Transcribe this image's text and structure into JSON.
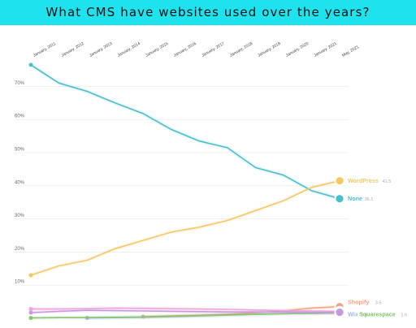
{
  "title": "What CMS have websites used over the years?",
  "colors": {
    "banner": "#1ee3ee",
    "none": "#4bbfd0",
    "wordpress": "#f7c765",
    "shopify": "#f6a27e",
    "wix": "#9db8f0",
    "squarespace": "#86c46e",
    "joomla": "#f3a3d9",
    "drupal": "#c79ae0"
  },
  "chart_data": {
    "type": "line",
    "x": [
      "January, 2011",
      "January, 2012",
      "January, 2013",
      "January, 2014",
      "January, 2015",
      "January, 2016",
      "January, 2017",
      "January, 2018",
      "January, 2019",
      "January, 2020",
      "January, 2021",
      "May, 2021"
    ],
    "ylim": [
      0,
      80
    ],
    "yticks": [
      "10%",
      "20%",
      "30%",
      "40%",
      "50%",
      "60%",
      "70%"
    ],
    "grid": "horizontal",
    "series": [
      {
        "name": "None",
        "value_label": "36.1",
        "color": "#4bbfd0",
        "values": [
          76.5,
          71.0,
          68.5,
          65.0,
          61.8,
          57.0,
          53.5,
          51.5,
          45.5,
          43.2,
          38.5,
          36.1
        ]
      },
      {
        "name": "WordPress",
        "value_label": "41.5",
        "color": "#f7c765",
        "values": [
          13.0,
          15.8,
          17.5,
          21.0,
          23.5,
          26.0,
          27.5,
          29.5,
          32.5,
          35.5,
          39.5,
          41.5
        ]
      },
      {
        "name": "Shopify",
        "value_label": "3.5",
        "color": "#f6a27e",
        "values": [
          null,
          null,
          null,
          null,
          0.5,
          0.7,
          0.9,
          1.2,
          1.7,
          2.2,
          3.1,
          3.5
        ]
      },
      {
        "name": "Wix",
        "value_label": "1.6",
        "color": "#9db8f0",
        "values": [
          null,
          null,
          0.1,
          0.2,
          0.3,
          0.5,
          0.7,
          1.0,
          1.2,
          1.4,
          1.5,
          1.6
        ]
      },
      {
        "name": "Squarespace",
        "value_label": "1.6",
        "color": "#86c46e",
        "values": [
          0.1,
          0.2,
          0.2,
          0.3,
          0.4,
          0.6,
          0.8,
          1.0,
          1.2,
          1.4,
          1.5,
          1.6
        ]
      },
      {
        "name": "",
        "color": "#f3a3d9",
        "values": [
          2.8,
          2.8,
          2.9,
          3.1,
          3.0,
          2.9,
          2.8,
          2.7,
          2.5,
          2.3,
          2.2,
          2.1
        ]
      },
      {
        "name": "",
        "color": "#c79ae0",
        "values": [
          1.7,
          2.1,
          2.4,
          2.3,
          2.2,
          2.1,
          2.0,
          1.9,
          1.9,
          1.9,
          1.8,
          1.8
        ]
      }
    ]
  }
}
